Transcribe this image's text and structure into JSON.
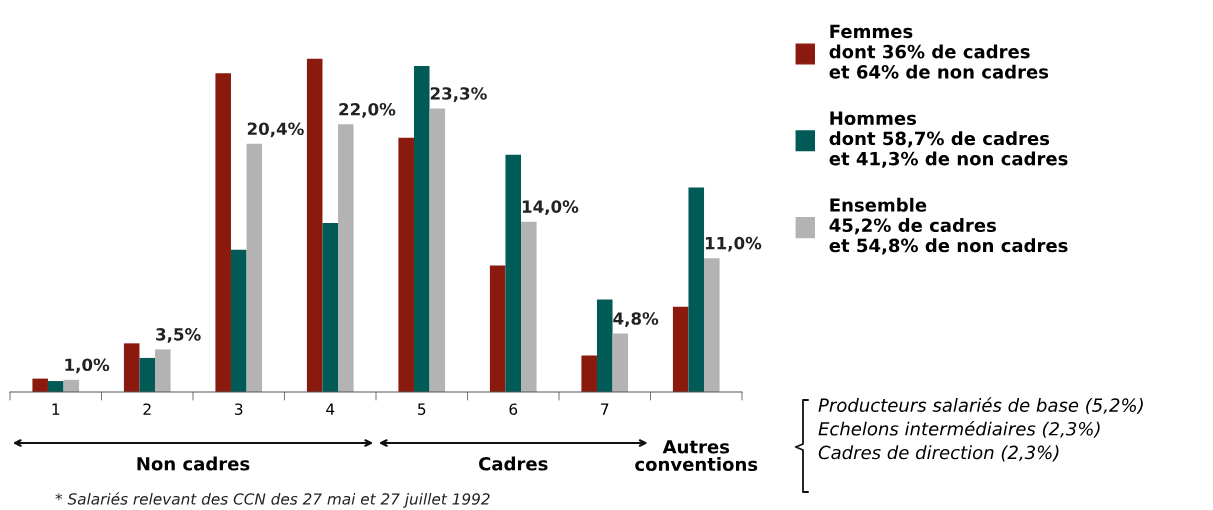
{
  "chart_data": {
    "type": "bar",
    "categories": [
      "1",
      "2",
      "3",
      "4",
      "5",
      "6",
      "7",
      null
    ],
    "series": [
      {
        "name": "Femmes\ndont 36% de cadres\net 64% de non cadres",
        "color": "#8b1a0e",
        "values": [
          1.1,
          4.0,
          26.2,
          27.4,
          20.9,
          10.4,
          3.0,
          7.0
        ]
      },
      {
        "name": "Hommes\ndont 58,7% de cadres\net 41,3% de non cadres",
        "color": "#005a55",
        "values": [
          0.9,
          2.8,
          11.7,
          13.9,
          26.8,
          19.5,
          7.6,
          16.8
        ]
      },
      {
        "name": "Ensemble\n45,2% de cadres\net 54,8% de non cadres",
        "color": "#b3b3b3",
        "values": [
          1.0,
          3.5,
          20.4,
          22.0,
          23.3,
          14.0,
          4.8,
          11.0
        ],
        "value_labels": [
          "1,0%",
          "3,5%",
          "20,4%",
          "22,0%",
          "23,3%",
          "14,0%",
          "4,8%",
          "11,0%"
        ]
      }
    ],
    "legend": "right",
    "grid": false,
    "annotations": [
      "Non cadres",
      "Cadres",
      "Autres\nconventions",
      "Producteurs salariés de base (5,2%)\nEchelons intermédiaires (2,3%)\nCadres de direction (2,3%)",
      "* Salariés relevant des CCN des 27 mai et 27 juillet 1992"
    ]
  }
}
